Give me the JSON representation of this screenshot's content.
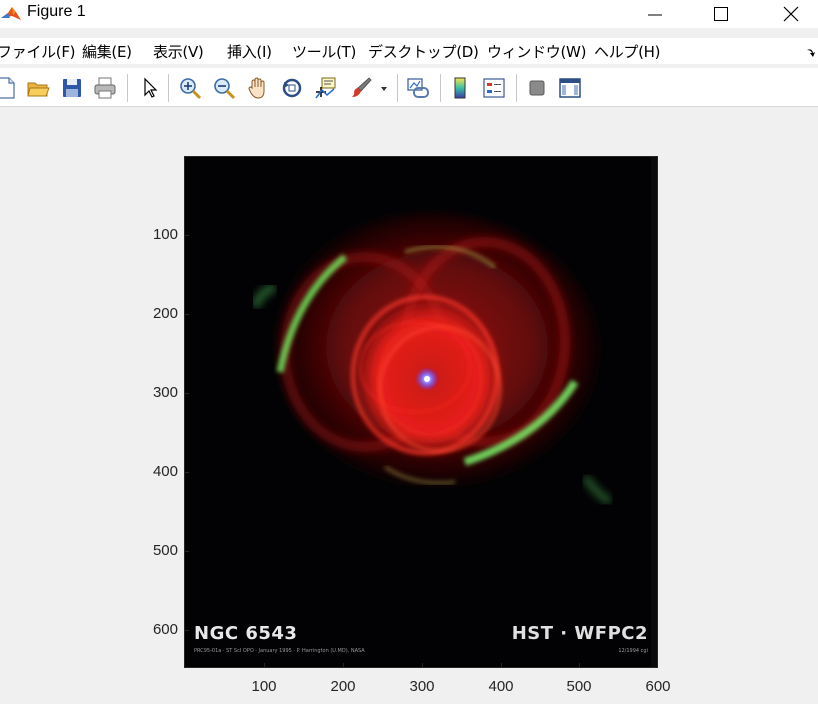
{
  "window": {
    "title": "Figure 1",
    "app_icon": "matlab-icon",
    "controls": [
      "minimize-icon",
      "maximize-icon",
      "close-icon"
    ]
  },
  "menubar": {
    "items": [
      {
        "label": "ファイル(F)"
      },
      {
        "label": "編集(E)"
      },
      {
        "label": "表示(V)"
      },
      {
        "label": "挿入(I)"
      },
      {
        "label": "ツール(T)"
      },
      {
        "label": "デスクトップ(D)"
      },
      {
        "label": "ウィンドウ(W)"
      },
      {
        "label": "ヘルプ(H)"
      }
    ]
  },
  "toolbar": {
    "buttons": [
      "new-figure-icon",
      "open-file-icon",
      "save-icon",
      "print-icon",
      "pointer-icon",
      "zoom-in-icon",
      "zoom-out-icon",
      "pan-icon",
      "rotate-3d-icon",
      "data-cursor-icon",
      "brush-icon",
      "brush-dropdown-icon",
      "link-plot-icon",
      "colorbar-icon",
      "legend-icon",
      "hide-plot-tools-icon",
      "show-plot-tools-icon"
    ]
  },
  "axes": {
    "y_ticks": [
      "100",
      "200",
      "300",
      "400",
      "500",
      "600"
    ],
    "x_ticks": [
      "100",
      "200",
      "300",
      "400",
      "500",
      "600"
    ],
    "xlim": [
      0.5,
      600.5
    ],
    "ylim": [
      0.5,
      650.5
    ]
  },
  "image": {
    "caption_left": "NGC 6543",
    "caption_right": "HST · WFPC2",
    "small_left": "PRC95-01a · ST ScI OPO · January 1995 · P. Harrington (U.MD), NASA",
    "small_right": "12/1994 cgi"
  },
  "colors": {
    "background": "#f0f0f0",
    "nebula_red": "#e8201a",
    "nebula_green": "#6ee05a",
    "core": "#8a7bff"
  }
}
